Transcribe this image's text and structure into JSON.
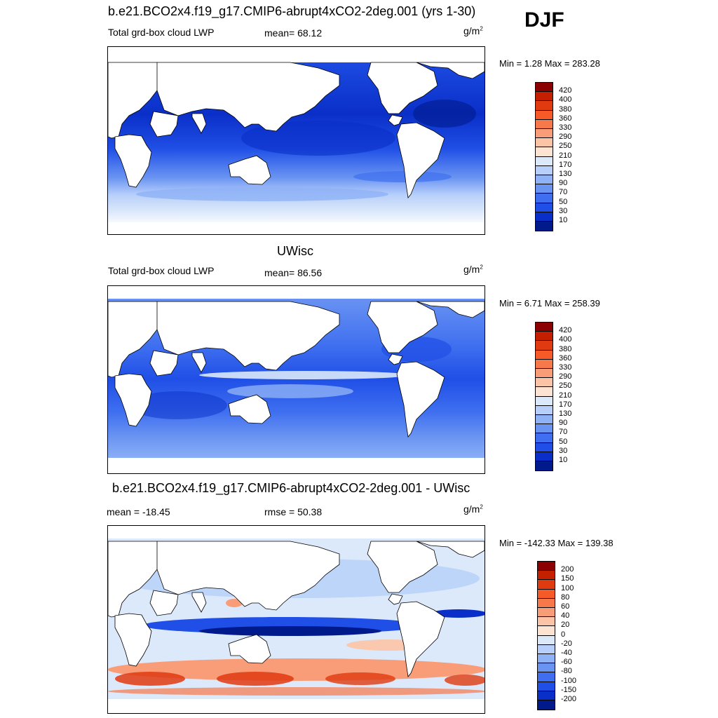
{
  "season": "DJF",
  "panels": [
    {
      "title": "b.e21.BCO2x4.f19_g17.CMIP6-abrupt4xCO2-2deg.001 (yrs 1-30)",
      "left_label": "Total grd-box cloud LWP",
      "center_label": "mean=  68.12",
      "unit_base": "g/m",
      "unit_exp": "2",
      "minmax": "Min =   1.28 Max = 283.28",
      "scale": "abs"
    },
    {
      "title": "UWisc",
      "left_label": "Total grd-box cloud LWP",
      "center_label": "mean=  86.56",
      "unit_base": "g/m",
      "unit_exp": "2",
      "minmax": "Min =   6.71 Max = 258.39",
      "scale": "abs"
    },
    {
      "title": "b.e21.BCO2x4.f19_g17.CMIP6-abrupt4xCO2-2deg.001 - UWisc",
      "left_label": "mean = -18.45",
      "center_label": "rmse =  50.38",
      "unit_base": "g/m",
      "unit_exp": "2",
      "minmax": "Min = -142.33 Max = 139.38",
      "scale": "diff"
    }
  ],
  "colorbars": {
    "abs": {
      "labels": [
        "420",
        "400",
        "380",
        "360",
        "330",
        "290",
        "250",
        "210",
        "170",
        "130",
        "90",
        "70",
        "50",
        "30",
        "10"
      ],
      "colors": [
        "#8b0000",
        "#c42000",
        "#e03a10",
        "#f55a28",
        "#f7784a",
        "#f99d78",
        "#fcc4a6",
        "#fde4d2",
        "#dce9fb",
        "#b7cffa",
        "#8fb2f6",
        "#6a94f2",
        "#3f6ff0",
        "#1f4fe6",
        "#0a2fc8",
        "#001a8c"
      ]
    },
    "diff": {
      "labels": [
        "200",
        "150",
        "100",
        "80",
        "60",
        "40",
        "20",
        "0",
        "-20",
        "-40",
        "-60",
        "-80",
        "-100",
        "-150",
        "-200"
      ],
      "colors": [
        "#8b0000",
        "#c42000",
        "#e03a10",
        "#f55a28",
        "#f7784a",
        "#f99d78",
        "#fcc4a6",
        "#fde4d2",
        "#dce9fb",
        "#b7cffa",
        "#8fb2f6",
        "#6a94f2",
        "#3f6ff0",
        "#1f4fe6",
        "#0a2fc8",
        "#001a8c"
      ]
    }
  }
}
